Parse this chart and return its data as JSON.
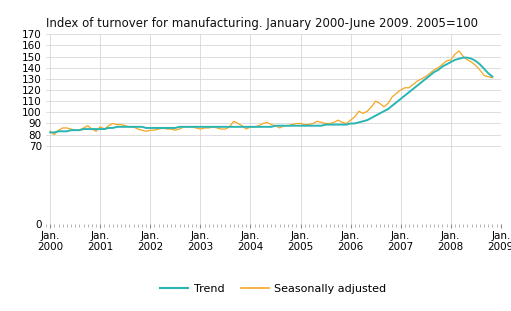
{
  "title": "Index of turnover for manufacturing. January 2000-June 2009. 2005=100",
  "trend_color": "#2ab5b5",
  "seasonal_color": "#f5a623",
  "background_color": "#ffffff",
  "grid_color": "#d0d0d0",
  "ylim": [
    0,
    170
  ],
  "yticks_shown": [
    0,
    70,
    80,
    90,
    100,
    110,
    120,
    130,
    140,
    150,
    160,
    170
  ],
  "xtick_labels": [
    "Jan.\n2000",
    "Jan.\n2001",
    "Jan.\n2002",
    "Jan.\n2003",
    "Jan.\n2004",
    "Jan.\n2005",
    "Jan.\n2006",
    "Jan.\n2007",
    "Jan.\n2008",
    "Jan.\n2009"
  ],
  "legend_labels": [
    "Trend",
    "Seasonally adjusted"
  ],
  "trend": [
    82,
    82,
    83,
    83,
    83,
    84,
    84,
    84,
    85,
    85,
    85,
    85,
    85,
    85,
    86,
    86,
    87,
    87,
    87,
    87,
    87,
    87,
    87,
    86,
    86,
    86,
    86,
    86,
    86,
    86,
    86,
    87,
    87,
    87,
    87,
    87,
    87,
    87,
    87,
    87,
    87,
    87,
    87,
    87,
    87,
    87,
    87,
    87,
    87,
    87,
    87,
    87,
    87,
    87,
    88,
    88,
    88,
    88,
    88,
    88,
    88,
    88,
    88,
    88,
    88,
    88,
    89,
    89,
    89,
    89,
    89,
    89,
    90,
    90,
    91,
    92,
    93,
    95,
    97,
    99,
    101,
    103,
    106,
    109,
    112,
    115,
    118,
    121,
    124,
    127,
    130,
    133,
    136,
    138,
    141,
    143,
    145,
    147,
    148,
    149,
    149,
    148,
    146,
    143,
    139,
    135,
    132
  ],
  "seasonal": [
    83,
    80,
    84,
    86,
    86,
    85,
    84,
    84,
    86,
    88,
    85,
    83,
    87,
    85,
    88,
    90,
    89,
    89,
    88,
    87,
    87,
    85,
    84,
    83,
    84,
    84,
    85,
    86,
    85,
    85,
    84,
    85,
    87,
    87,
    87,
    86,
    85,
    86,
    86,
    87,
    86,
    85,
    85,
    87,
    92,
    90,
    88,
    85,
    87,
    87,
    88,
    90,
    91,
    89,
    88,
    86,
    88,
    88,
    89,
    90,
    90,
    89,
    89,
    90,
    92,
    91,
    90,
    90,
    91,
    93,
    91,
    90,
    93,
    96,
    101,
    99,
    101,
    105,
    110,
    108,
    105,
    108,
    114,
    117,
    120,
    122,
    122,
    125,
    128,
    130,
    132,
    135,
    138,
    140,
    143,
    146,
    147,
    152,
    155,
    150,
    147,
    145,
    142,
    138,
    133,
    132,
    131
  ]
}
